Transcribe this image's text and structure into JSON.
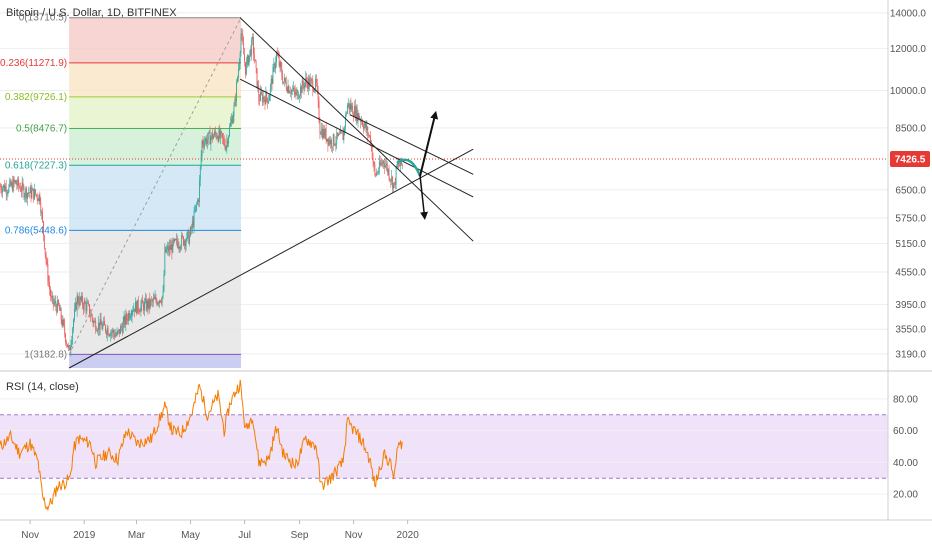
{
  "header": {
    "title": "Bitcoin / U.S. Dollar, 1D, BITFINEX"
  },
  "rsi_panel": {
    "label": "RSI (14, close)"
  },
  "price_tag": {
    "value": "7426.5"
  },
  "colors": {
    "bull": "#26a69a",
    "bear": "#ef5350",
    "rsi_line": "#f57c00",
    "rsi_band": "#e9d6f7",
    "current_price_line": "#e53935",
    "fib_0_band": "#f4c7c3",
    "fib_236_band": "#f8e3c0",
    "fib_382_band": "#e3f2c4",
    "fib_5_band": "#c9ecd0",
    "fib_618_band": "#c6e2f2",
    "fib_786_band": "#e2e2e2",
    "fib_1_band": "#c5c8f0"
  },
  "chart_data": [
    {
      "type": "candlestick",
      "title": "Bitcoin / U.S. Dollar, 1D, BITFINEX",
      "x_tick_labels": [
        "Nov",
        "2019",
        "Mar",
        "May",
        "Jul",
        "Sep",
        "Nov",
        "2020"
      ],
      "y_tick_labels": [
        "14000.0",
        "12000.0",
        "10000.0",
        "8500.0",
        "6500.0",
        "5750.0",
        "5150.0",
        "4550.0",
        "3950.0",
        "3550.0",
        "3190.0"
      ],
      "y_ticks": [
        14000,
        12000,
        10000,
        8500,
        6500,
        5750,
        5150,
        4550,
        3950,
        3550,
        3190
      ],
      "ylim": [
        3000,
        14300
      ],
      "y_scale": "log",
      "grid": true,
      "current_price": 7426.5,
      "price_path": [
        [
          "2018-09-28",
          6600
        ],
        [
          "2018-10-08",
          6550
        ],
        [
          "2018-10-15",
          6700
        ],
        [
          "2018-10-26",
          6450
        ],
        [
          "2018-11-05",
          6400
        ],
        [
          "2018-11-12",
          6300
        ],
        [
          "2018-11-15",
          5600
        ],
        [
          "2018-11-20",
          4600
        ],
        [
          "2018-11-25",
          4000
        ],
        [
          "2018-12-03",
          3900
        ],
        [
          "2018-12-10",
          3500
        ],
        [
          "2018-12-15",
          3200
        ],
        [
          "2018-12-20",
          3700
        ],
        [
          "2018-12-24",
          4050
        ],
        [
          "2019-01-05",
          3900
        ],
        [
          "2019-01-12",
          3650
        ],
        [
          "2019-01-28",
          3550
        ],
        [
          "2019-02-07",
          3450
        ],
        [
          "2019-02-15",
          3650
        ],
        [
          "2019-02-24",
          3900
        ],
        [
          "2019-03-15",
          3950
        ],
        [
          "2019-03-31",
          4100
        ],
        [
          "2019-04-02",
          4950
        ],
        [
          "2019-04-15",
          5150
        ],
        [
          "2019-04-30",
          5300
        ],
        [
          "2019-05-10",
          6300
        ],
        [
          "2019-05-14",
          8000
        ],
        [
          "2019-05-20",
          8100
        ],
        [
          "2019-05-31",
          8300
        ],
        [
          "2019-06-10",
          7900
        ],
        [
          "2019-06-20",
          9400
        ],
        [
          "2019-06-25",
          11500
        ],
        [
          "2019-06-27",
          12800
        ],
        [
          "2019-07-02",
          11000
        ],
        [
          "2019-07-10",
          12300
        ],
        [
          "2019-07-17",
          9700
        ],
        [
          "2019-07-28",
          9700
        ],
        [
          "2019-08-06",
          11700
        ],
        [
          "2019-08-14",
          10400
        ],
        [
          "2019-08-28",
          9800
        ],
        [
          "2019-09-08",
          10400
        ],
        [
          "2019-09-20",
          10200
        ],
        [
          "2019-09-24",
          8500
        ],
        [
          "2019-10-06",
          8000
        ],
        [
          "2019-10-20",
          8200
        ],
        [
          "2019-10-25",
          9400
        ],
        [
          "2019-11-01",
          9200
        ],
        [
          "2019-11-10",
          8800
        ],
        [
          "2019-11-20",
          8100
        ],
        [
          "2019-11-25",
          6900
        ],
        [
          "2019-12-05",
          7400
        ],
        [
          "2019-12-17",
          6600
        ],
        [
          "2019-12-20",
          7200
        ],
        [
          "2019-12-26",
          7250
        ]
      ],
      "fibonacci": {
        "levels": [
          {
            "ratio": "0",
            "price": 13710.5,
            "label": "0(13710.5)"
          },
          {
            "ratio": "0.236",
            "price": 11271.9,
            "label": "0.236(11271.9)"
          },
          {
            "ratio": "0.382",
            "price": 9726.1,
            "label": "0.382(9726.1)"
          },
          {
            "ratio": "0.5",
            "price": 8476.7,
            "label": "0.5(8476.7)"
          },
          {
            "ratio": "0.618",
            "price": 7227.3,
            "label": "0.618(7227.3)"
          },
          {
            "ratio": "0.786",
            "price": 5448.6,
            "label": "0.786(5448.6)"
          },
          {
            "ratio": "1",
            "price": 3182.8,
            "label": "1(3182.8)"
          }
        ],
        "start_date": "2018-12-15",
        "end_date": "2019-06-27",
        "bottom_price": 3000
      },
      "trendlines": [
        {
          "from": [
            "2019-06-26",
            13710.5
          ],
          "to": [
            "2020-03-15",
            5200
          ],
          "style": "solid"
        },
        {
          "from": [
            "2019-06-26",
            10500
          ],
          "to": [
            "2020-03-15",
            6300
          ],
          "style": "solid"
        },
        {
          "from": [
            "2019-10-28",
            9000
          ],
          "to": [
            "2020-03-15",
            6950
          ],
          "style": "solid"
        },
        {
          "from": [
            "2018-12-15",
            3000
          ],
          "to": [
            "2020-03-15",
            7750
          ],
          "style": "solid"
        },
        {
          "from": [
            "2018-12-15",
            3182.8
          ],
          "to": [
            "2019-06-27",
            13710.5
          ],
          "style": "dashed"
        }
      ],
      "projection": {
        "curve": [
          [
            "2019-12-20",
            7300
          ],
          [
            "2020-01-04",
            7350
          ],
          [
            "2020-01-15",
            6900
          ]
        ],
        "arrow_up": {
          "from": [
            "2020-01-15",
            6900
          ],
          "to": [
            "2020-02-01",
            9000
          ]
        },
        "arrow_down": {
          "from": [
            "2020-01-15",
            6900
          ],
          "to": [
            "2020-01-20",
            5800
          ]
        }
      }
    },
    {
      "type": "line",
      "title": "RSI (14, close)",
      "y_tick_labels": [
        "80.00",
        "60.00",
        "40.00",
        "20.00"
      ],
      "y_ticks": [
        80,
        60,
        40,
        20
      ],
      "ylim": [
        5,
        95
      ],
      "band": [
        30,
        70
      ],
      "series": [
        {
          "name": "RSI",
          "points": [
            [
              "2018-09-28",
              50
            ],
            [
              "2018-10-10",
              56
            ],
            [
              "2018-10-20",
              46
            ],
            [
              "2018-11-01",
              52
            ],
            [
              "2018-11-10",
              40
            ],
            [
              "2018-11-15",
              18
            ],
            [
              "2018-11-20",
              12
            ],
            [
              "2018-11-25",
              15
            ],
            [
              "2018-12-02",
              25
            ],
            [
              "2018-12-10",
              27
            ],
            [
              "2018-12-16",
              30
            ],
            [
              "2018-12-20",
              48
            ],
            [
              "2018-12-25",
              55
            ],
            [
              "2019-01-08",
              52
            ],
            [
              "2019-01-14",
              40
            ],
            [
              "2019-01-28",
              46
            ],
            [
              "2019-02-08",
              42
            ],
            [
              "2019-02-18",
              60
            ],
            [
              "2019-03-02",
              52
            ],
            [
              "2019-03-18",
              55
            ],
            [
              "2019-04-02",
              75
            ],
            [
              "2019-04-10",
              60
            ],
            [
              "2019-04-20",
              58
            ],
            [
              "2019-05-02",
              70
            ],
            [
              "2019-05-11",
              88
            ],
            [
              "2019-05-20",
              70
            ],
            [
              "2019-06-01",
              82
            ],
            [
              "2019-06-08",
              60
            ],
            [
              "2019-06-15",
              78
            ],
            [
              "2019-06-26",
              90
            ],
            [
              "2019-07-02",
              60
            ],
            [
              "2019-07-10",
              70
            ],
            [
              "2019-07-17",
              40
            ],
            [
              "2019-07-28",
              42
            ],
            [
              "2019-08-06",
              62
            ],
            [
              "2019-08-14",
              45
            ],
            [
              "2019-08-28",
              38
            ],
            [
              "2019-09-08",
              55
            ],
            [
              "2019-09-20",
              50
            ],
            [
              "2019-09-25",
              25
            ],
            [
              "2019-10-06",
              30
            ],
            [
              "2019-10-20",
              40
            ],
            [
              "2019-10-25",
              65
            ],
            [
              "2019-11-02",
              60
            ],
            [
              "2019-11-12",
              52
            ],
            [
              "2019-11-20",
              40
            ],
            [
              "2019-11-25",
              25
            ],
            [
              "2019-12-05",
              45
            ],
            [
              "2019-12-12",
              40
            ],
            [
              "2019-12-17",
              30
            ],
            [
              "2019-12-20",
              48
            ],
            [
              "2019-12-26",
              53
            ]
          ]
        }
      ]
    }
  ]
}
